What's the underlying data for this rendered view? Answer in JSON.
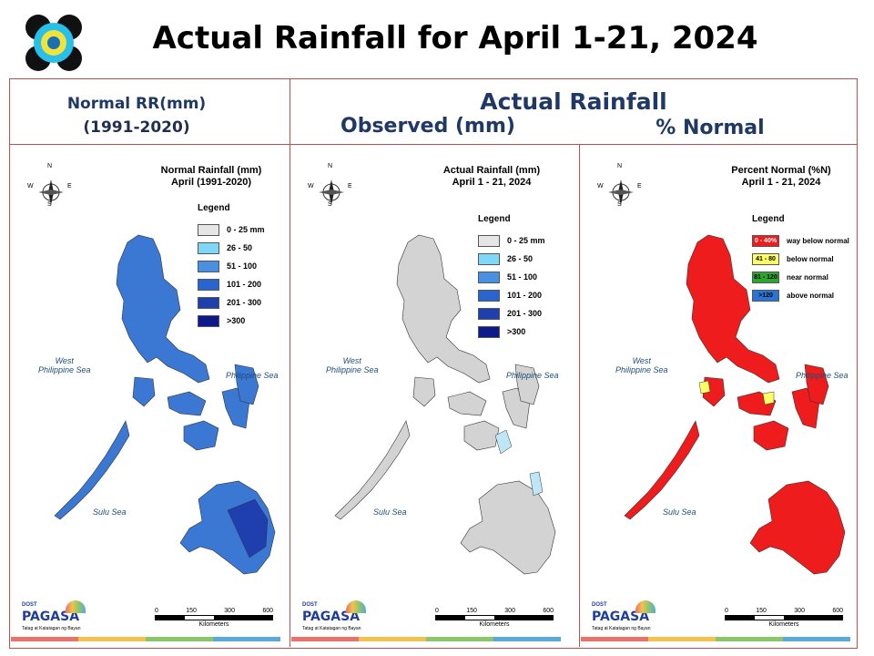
{
  "title": "Actual Rainfall for April 1-21, 2024",
  "header": {
    "normal_line1": "Normal RR(mm)",
    "normal_line2": "(1991-2020)",
    "actual": "Actual Rainfall",
    "observed": "Observed (mm)",
    "percent": "% Normal"
  },
  "compass": {
    "n": "N",
    "s": "S",
    "e": "E",
    "w": "W"
  },
  "seas": {
    "west1": "West",
    "west2": "Philippine Sea",
    "east": "Philippine Sea",
    "sulu": "Sulu Sea"
  },
  "scale": {
    "ticks": [
      "0",
      "150",
      "300",
      "600"
    ],
    "unit": "Kilometers"
  },
  "panels": [
    {
      "title1": "Normal Rainfall (mm)",
      "title2": "April (1991-2020)",
      "legend_title": "Legend",
      "fill_main": "#3a78d4",
      "legend": [
        {
          "color": "#e6e6e6",
          "label": "0 - 25 mm"
        },
        {
          "color": "#7fd8f7",
          "label": "26 - 50"
        },
        {
          "color": "#4a90e2",
          "label": "51 - 100"
        },
        {
          "color": "#2a64cf",
          "label": "101 - 200"
        },
        {
          "color": "#1f3fae",
          "label": "201 - 300"
        },
        {
          "color": "#0c1a8a",
          "label": ">300"
        }
      ]
    },
    {
      "title1": "Actual Rainfall (mm)",
      "title2": "April 1 - 21, 2024",
      "legend_title": "Legend",
      "fill_main": "#d3d3d3",
      "legend": [
        {
          "color": "#e6e6e6",
          "label": "0 - 25 mm"
        },
        {
          "color": "#7fd8f7",
          "label": "26 - 50"
        },
        {
          "color": "#4a90e2",
          "label": "51 - 100"
        },
        {
          "color": "#2a64cf",
          "label": "101 - 200"
        },
        {
          "color": "#1f3fae",
          "label": "201 - 300"
        },
        {
          "color": "#0c1a8a",
          "label": ">300"
        }
      ]
    },
    {
      "title1": "Percent Normal (%N)",
      "title2": "April 1 - 21, 2024",
      "legend_title": "Legend",
      "fill_main": "#ee1c1c",
      "legend": [
        {
          "color": "#ee1c1c",
          "code": "0 - 40%",
          "label": "way below normal"
        },
        {
          "color": "#ffff66",
          "code": "41 - 80",
          "label": "below normal"
        },
        {
          "color": "#2ea52e",
          "code": "81 - 120",
          "label": "near normal"
        },
        {
          "color": "#2a74d6",
          "code": ">120",
          "label": "above normal"
        }
      ]
    }
  ],
  "footer": {
    "brand": "PAGASA",
    "dost": "DOST",
    "tagline": "Tatag at Katatagan ng Bayan"
  },
  "colors": {
    "border": "#c0504d",
    "header_text": "#1f3864",
    "bar": [
      "#e8736a",
      "#f2c14e",
      "#8cc66b",
      "#5aa9d6"
    ]
  }
}
